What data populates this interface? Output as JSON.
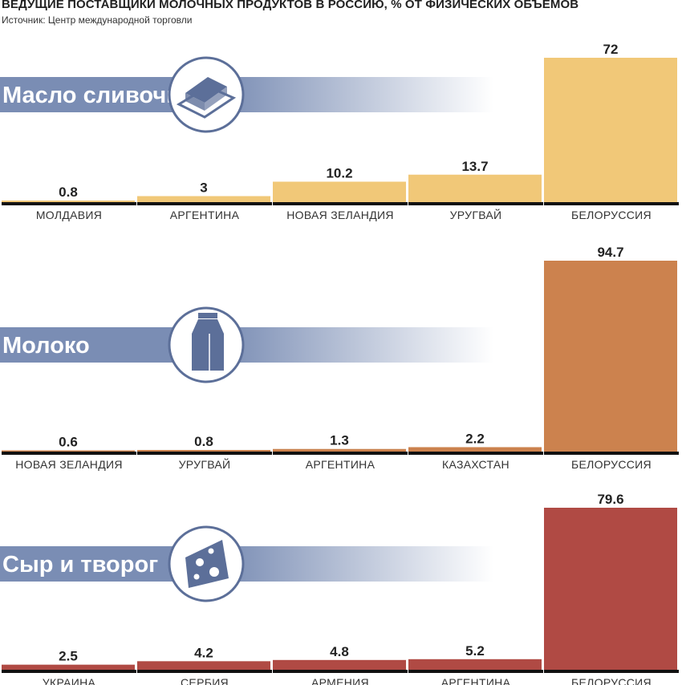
{
  "title": "ВЕДУЩИЕ ПОСТАВЩИКИ МОЛОЧНЫХ ПРОДУКТОВ В РОССИЮ, % ОТ ФИЗИЧЕСКИХ ОБЪЕМОВ",
  "source": "Источник: Центр международной торговли",
  "colors": {
    "banner": "#7a8db4",
    "axis": "#111111",
    "icon": "#5c6f99"
  },
  "chart_data": [
    {
      "type": "bar",
      "title": "Масло сливочное",
      "icon": "butter-icon",
      "color": "#f1c878",
      "categories": [
        "МОЛДАВИЯ",
        "АРГЕНТИНА",
        "НОВАЯ ЗЕЛАНДИЯ",
        "УРУГВАЙ",
        "БЕЛОРУССИЯ"
      ],
      "values": [
        0.8,
        3,
        10.2,
        13.7,
        72
      ],
      "value_labels": [
        "0.8",
        "3",
        "10.2",
        "13.7",
        "72"
      ]
    },
    {
      "type": "bar",
      "title": "Молоко",
      "icon": "milk-carton-icon",
      "color": "#cc824e",
      "categories": [
        "НОВАЯ ЗЕЛАНДИЯ",
        "УРУГВАЙ",
        "АРГЕНТИНА",
        "КАЗАХСТАН",
        "БЕЛОРУССИЯ"
      ],
      "values": [
        0.6,
        0.8,
        1.3,
        2.2,
        94.7
      ],
      "value_labels": [
        "0.6",
        "0.8",
        "1.3",
        "2.2",
        "94.7"
      ]
    },
    {
      "type": "bar",
      "title": "Сыр и творог",
      "icon": "cheese-icon",
      "color": "#b04a44",
      "categories": [
        "УКРАИНА",
        "СЕРБИЯ",
        "АРМЕНИЯ",
        "АРГЕНТИНА",
        "БЕЛОРУССИЯ"
      ],
      "values": [
        2.5,
        4.2,
        4.8,
        5.2,
        79.6
      ],
      "value_labels": [
        "2.5",
        "4.2",
        "4.8",
        "5.2",
        "79.6"
      ]
    }
  ]
}
